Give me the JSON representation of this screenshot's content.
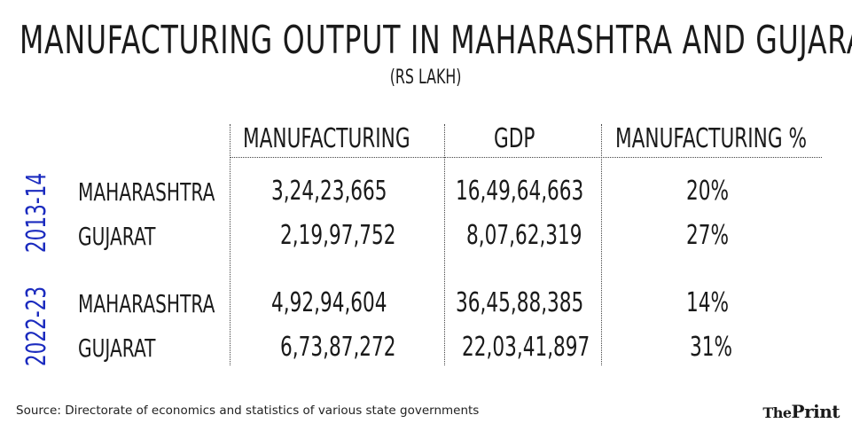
{
  "title": "MANUFACTURING OUTPUT IN MAHARASHTRA AND GUJARAT",
  "subtitle": "(RS LAKH)",
  "source": "Source: Directorate of economics and statistics of various state governments",
  "logo": {
    "the": "The",
    "rest": "Print"
  },
  "colors": {
    "period_label": "#1b2bbf",
    "text": "#1a1a1a",
    "divider": "#444444"
  },
  "chart_data": {
    "type": "table",
    "columns": [
      "MANUFACTURING",
      "GDP",
      "MANUFACTURING %"
    ],
    "periods": [
      {
        "label": "2013-14",
        "rows": [
          {
            "state": "MAHARASHTRA",
            "manufacturing": "3,24,23,665",
            "gdp": "16,49,64,663",
            "pct": "20%"
          },
          {
            "state": "GUJARAT",
            "manufacturing": "2,19,97,752",
            "gdp": "8,07,62,319",
            "pct": "27%"
          }
        ]
      },
      {
        "label": "2022-23",
        "rows": [
          {
            "state": "MAHARASHTRA",
            "manufacturing": "4,92,94,604",
            "gdp": "36,45,88,385",
            "pct": "14%"
          },
          {
            "state": "GUJARAT",
            "manufacturing": "6,73,87,272",
            "gdp": "22,03,41,897",
            "pct": "31%"
          }
        ]
      }
    ]
  }
}
